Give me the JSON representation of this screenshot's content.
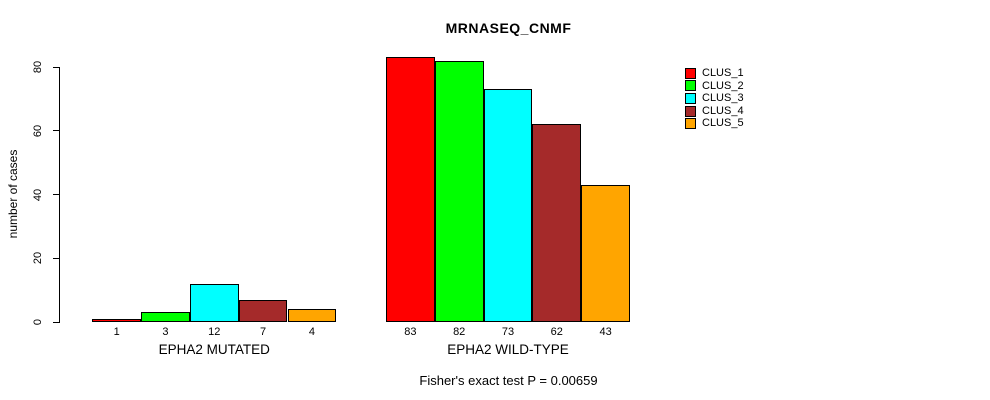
{
  "title": "MRNASEQ_CNMF",
  "caption": "Fisher's exact test P = 0.00659",
  "y_axis": {
    "label": "number of cases",
    "ticks": [
      0,
      20,
      40,
      60,
      80
    ]
  },
  "legend": {
    "items": [
      {
        "label": "CLUS_1",
        "color": "#FF0000"
      },
      {
        "label": "CLUS_2",
        "color": "#00FF00"
      },
      {
        "label": "CLUS_3",
        "color": "#00FFFF"
      },
      {
        "label": "CLUS_4",
        "color": "#A52A2A"
      },
      {
        "label": "CLUS_5",
        "color": "#FFA500"
      }
    ]
  },
  "chart_data": {
    "type": "bar",
    "title": "MRNASEQ_CNMF",
    "xlabel": "",
    "ylabel": "number of cases",
    "ylim": [
      0,
      80
    ],
    "yticks": [
      0,
      20,
      40,
      60,
      80
    ],
    "grid": false,
    "legend_position": "right",
    "series_names": [
      "CLUS_1",
      "CLUS_2",
      "CLUS_3",
      "CLUS_4",
      "CLUS_5"
    ],
    "colors": [
      "#FF0000",
      "#00FF00",
      "#00FFFF",
      "#A52A2A",
      "#FFA500"
    ],
    "groups": [
      {
        "label": "EPHA2 MUTATED",
        "values": [
          1,
          3,
          12,
          7,
          4
        ]
      },
      {
        "label": "EPHA2 WILD-TYPE",
        "values": [
          83,
          82,
          73,
          62,
          43
        ]
      }
    ],
    "bar_value_labels_shown": true,
    "annotation": "Fisher's exact test P = 0.00659"
  }
}
